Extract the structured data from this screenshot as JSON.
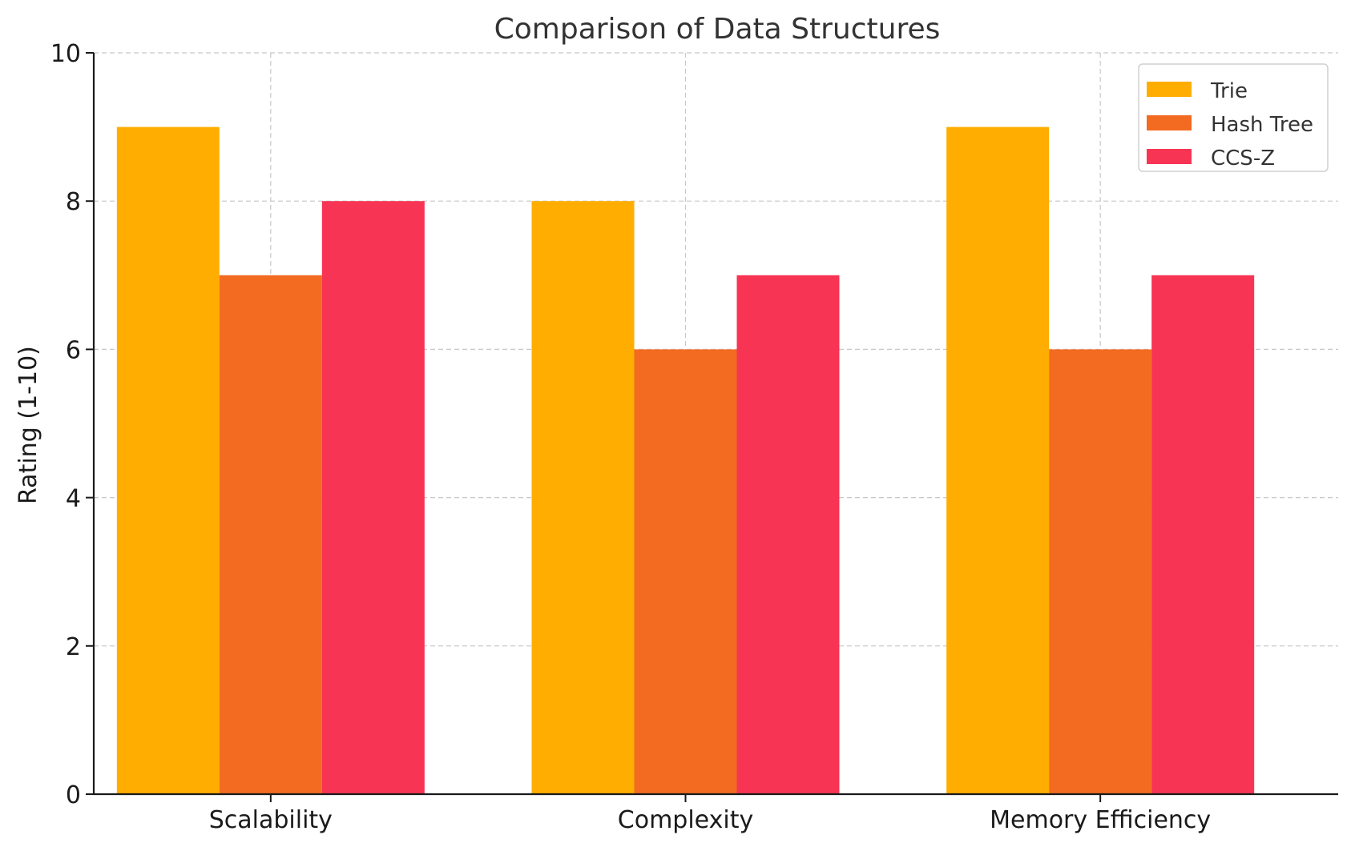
{
  "chart_data": {
    "type": "bar",
    "title": "Comparison of Data Structures",
    "xlabel": "",
    "ylabel": "Rating (1-10)",
    "categories": [
      "Scalability",
      "Complexity",
      "Memory Efficiency"
    ],
    "series": [
      {
        "name": "Trie",
        "color": "#ffad00",
        "values": [
          9,
          8,
          9
        ]
      },
      {
        "name": "Hash Tree",
        "color": "#f26b21",
        "values": [
          7,
          6,
          6
        ]
      },
      {
        "name": "CCS-Z",
        "color": "#f73453",
        "values": [
          8,
          7,
          7
        ]
      }
    ],
    "ylim": [
      0,
      10
    ],
    "yticks": [
      "0",
      "2",
      "4",
      "6",
      "8",
      "10"
    ],
    "grid": true,
    "legend_position": "top-right"
  }
}
